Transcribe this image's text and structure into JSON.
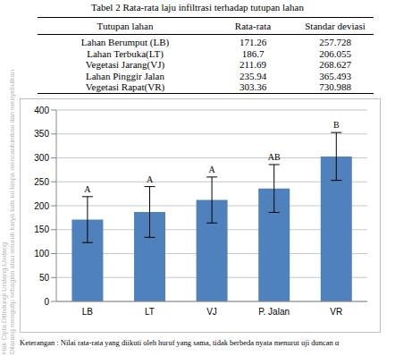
{
  "watermark": [
    "Hak Cipta Dilindungi Undang-Undang",
    "Dilarang mengutip sebagian atau seluruh karya tulis ini tanpa mencantumkan dan menyebutkan"
  ],
  "table": {
    "title": "Tabel 2  Rata-rata laju infiltrasi terhadap tutupan lahan",
    "header": [
      "Tutupan lahan",
      "Rata-rata",
      "Standar deviasi"
    ],
    "rows": [
      [
        "Lahan Berumput (LB)",
        "171.26",
        "257.728"
      ],
      [
        "Lahan Terbuka(LT)",
        "186.7",
        "206.055"
      ],
      [
        "Vegetasi Jarang(VJ)",
        "211.69",
        "268.627"
      ],
      [
        "Lahan Pinggir Jalan",
        "235.94",
        "365.493"
      ],
      [
        "Vegetasi Rapat(VR)",
        "303.36",
        "730.988"
      ]
    ]
  },
  "chart_data": {
    "type": "bar",
    "categories": [
      "LB",
      "LT",
      "VJ",
      "P. Jalan",
      "VR"
    ],
    "values": [
      171,
      187,
      212,
      236,
      303
    ],
    "errors": [
      48,
      53,
      48,
      50,
      50
    ],
    "letters": [
      "A",
      "A",
      "A",
      "AB",
      "B"
    ],
    "color": "#4f81bd",
    "ylim": [
      0,
      400
    ],
    "yticks": [
      0,
      50,
      100,
      150,
      200,
      250,
      300,
      350,
      400
    ],
    "grid": true
  },
  "note": "Keterangan : Nilai rata-rata yang diikuti oleh huruf yang sama, tidak berbeda nyata menurut uji duncan α"
}
